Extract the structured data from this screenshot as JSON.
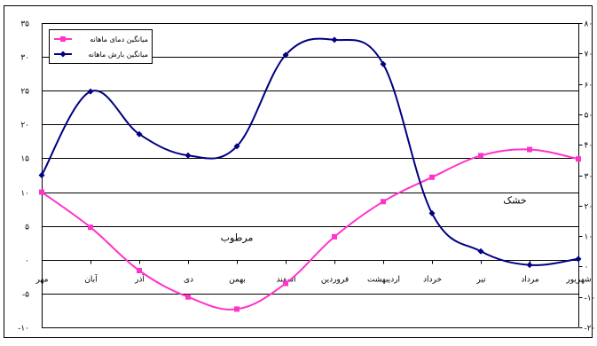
{
  "chart_data": {
    "type": "line",
    "categories": [
      "مهر",
      "آبان",
      "آذر",
      "دی",
      "بهمن",
      "اسفند",
      "فروردین",
      "اردیبهشت",
      "خرداد",
      "تیر",
      "مرداد",
      "شهریور"
    ],
    "series": [
      {
        "name": "میانگین دمای ماهانه",
        "axis": "left",
        "color": "#ff33cc",
        "marker": "square",
        "values": [
          10,
          4.8,
          -1.6,
          -5.5,
          -7.3,
          -3.5,
          3.4,
          8.6,
          12.2,
          15.4,
          16.3,
          14.9
        ]
      },
      {
        "name": "میانگین بارش ماهانه",
        "axis": "right",
        "color": "#000080",
        "marker": "diamond",
        "values": [
          30,
          57.5,
          43.5,
          36.5,
          39.5,
          69.5,
          74.5,
          66.5,
          17.5,
          5,
          0.5,
          2.5
        ]
      }
    ],
    "y_left": {
      "min": -10,
      "max": 35,
      "ticks": [
        -10,
        -5,
        0,
        5,
        10,
        15,
        20,
        25,
        30,
        35
      ],
      "tick_labels": [
        "-۱۰",
        "-۵",
        "۰",
        "۵",
        "۱۰",
        "۱۵",
        "۲۰",
        "۲۵",
        "۳۰",
        "۳۵"
      ]
    },
    "y_right": {
      "min": -20,
      "max": 80,
      "ticks": [
        -20,
        -10,
        0,
        10,
        20,
        30,
        40,
        50,
        60,
        70,
        80
      ],
      "tick_labels": [
        "-۲۰",
        "-۱۰",
        "۰",
        "۱۰",
        "۲۰",
        "۳۰",
        "۴۰",
        "۵۰",
        "۶۰",
        "۷۰",
        "۸۰"
      ]
    },
    "grid": "horizontal",
    "legend": "top-left",
    "annotations": [
      {
        "text": "مرطوب",
        "x": 4,
        "y_left": 2.8
      },
      {
        "text": "خشک",
        "x": 9.7,
        "y_left": 8.3
      }
    ]
  }
}
